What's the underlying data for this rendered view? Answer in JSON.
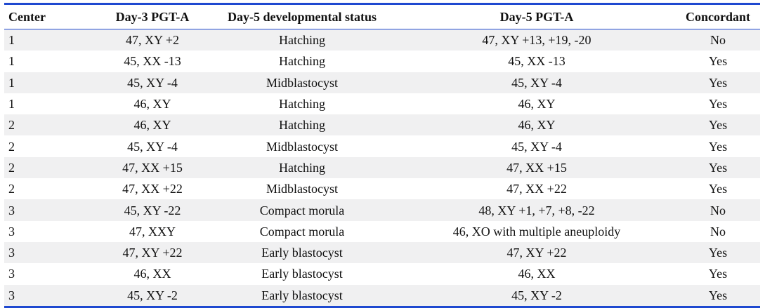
{
  "table": {
    "headers": {
      "center": "Center",
      "day3": "Day-3 PGT-A",
      "status": "Day-5 developmental status",
      "day5": "Day-5 PGT-A",
      "concordant": "Concordant"
    },
    "rows": [
      {
        "center": "1",
        "day3": "47, XY +2",
        "status": "Hatching",
        "day5": "47, XY +13, +19, -20",
        "concordant": "No"
      },
      {
        "center": "1",
        "day3": "45, XX -13",
        "status": "Hatching",
        "day5": "45, XX -13",
        "concordant": "Yes"
      },
      {
        "center": "1",
        "day3": "45, XY -4",
        "status": "Midblastocyst",
        "day5": "45, XY -4",
        "concordant": "Yes"
      },
      {
        "center": "1",
        "day3": "46, XY",
        "status": "Hatching",
        "day5": "46, XY",
        "concordant": "Yes"
      },
      {
        "center": "2",
        "day3": "46, XY",
        "status": "Hatching",
        "day5": "46, XY",
        "concordant": "Yes"
      },
      {
        "center": "2",
        "day3": "45, XY -4",
        "status": "Midblastocyst",
        "day5": "45, XY -4",
        "concordant": "Yes"
      },
      {
        "center": "2",
        "day3": "47, XX +15",
        "status": "Hatching",
        "day5": "47, XX +15",
        "concordant": "Yes"
      },
      {
        "center": "2",
        "day3": "47, XX +22",
        "status": "Midblastocyst",
        "day5": "47, XX +22",
        "concordant": "Yes"
      },
      {
        "center": "3",
        "day3": "45, XY -22",
        "status": "Compact morula",
        "day5": "48, XY +1, +7, +8, -22",
        "concordant": "No"
      },
      {
        "center": "3",
        "day3": "47, XXY",
        "status": "Compact morula",
        "day5": "46, XO with multiple aneuploidy",
        "concordant": "No"
      },
      {
        "center": "3",
        "day3": "47, XY +22",
        "status": "Early blastocyst",
        "day5": "47, XY +22",
        "concordant": "Yes"
      },
      {
        "center": "3",
        "day3": "46, XX",
        "status": "Early blastocyst",
        "day5": "46, XX",
        "concordant": "Yes"
      },
      {
        "center": "3",
        "day3": "45, XY -2",
        "status": "Early blastocyst",
        "day5": "45, XY -2",
        "concordant": "Yes"
      }
    ]
  },
  "colors": {
    "rule": "#1f49d0",
    "stripe": "#f0f0f1"
  }
}
